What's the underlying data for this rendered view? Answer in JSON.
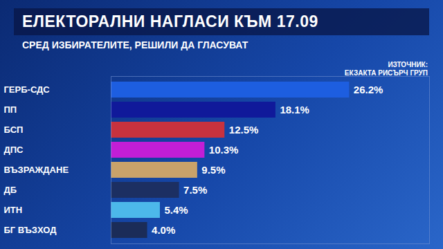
{
  "chart_data": {
    "type": "bar",
    "orientation": "horizontal",
    "title": "ЕЛЕКТОРАЛНИ НАГЛАСИ КЪМ 17.09",
    "subtitle": "СРЕД ИЗБИРАТЕЛИТЕ, РЕШИЛИ ДА ГЛАСУВАТ",
    "annotations": [
      "ИЗТОЧНИК:",
      "ЕКЗАКТА РИСЪРЧ ГРУП"
    ],
    "categories": [
      "ГЕРБ-СДС",
      "ПП",
      "БСП",
      "ДПС",
      "ВЪЗРАЖДАНЕ",
      "ДБ",
      "ИТН",
      "БГ ВЪЗХОД"
    ],
    "values": [
      26.2,
      18.1,
      12.5,
      10.3,
      9.5,
      7.5,
      5.4,
      4.0
    ],
    "value_labels": [
      "26.2%",
      "18.1%",
      "12.5%",
      "10.3%",
      "9.5%",
      "7.5%",
      "5.4%",
      "4.0%"
    ],
    "colors": [
      "#1d5ee0",
      "#10199a",
      "#c8323e",
      "#c21ed6",
      "#c9a26a",
      "#1c2f62",
      "#4cb8ea",
      "#1b2c58"
    ],
    "xlim": [
      0,
      35
    ],
    "xticks": [],
    "grid": false,
    "data_labels": true,
    "tick_labels": "y"
  }
}
